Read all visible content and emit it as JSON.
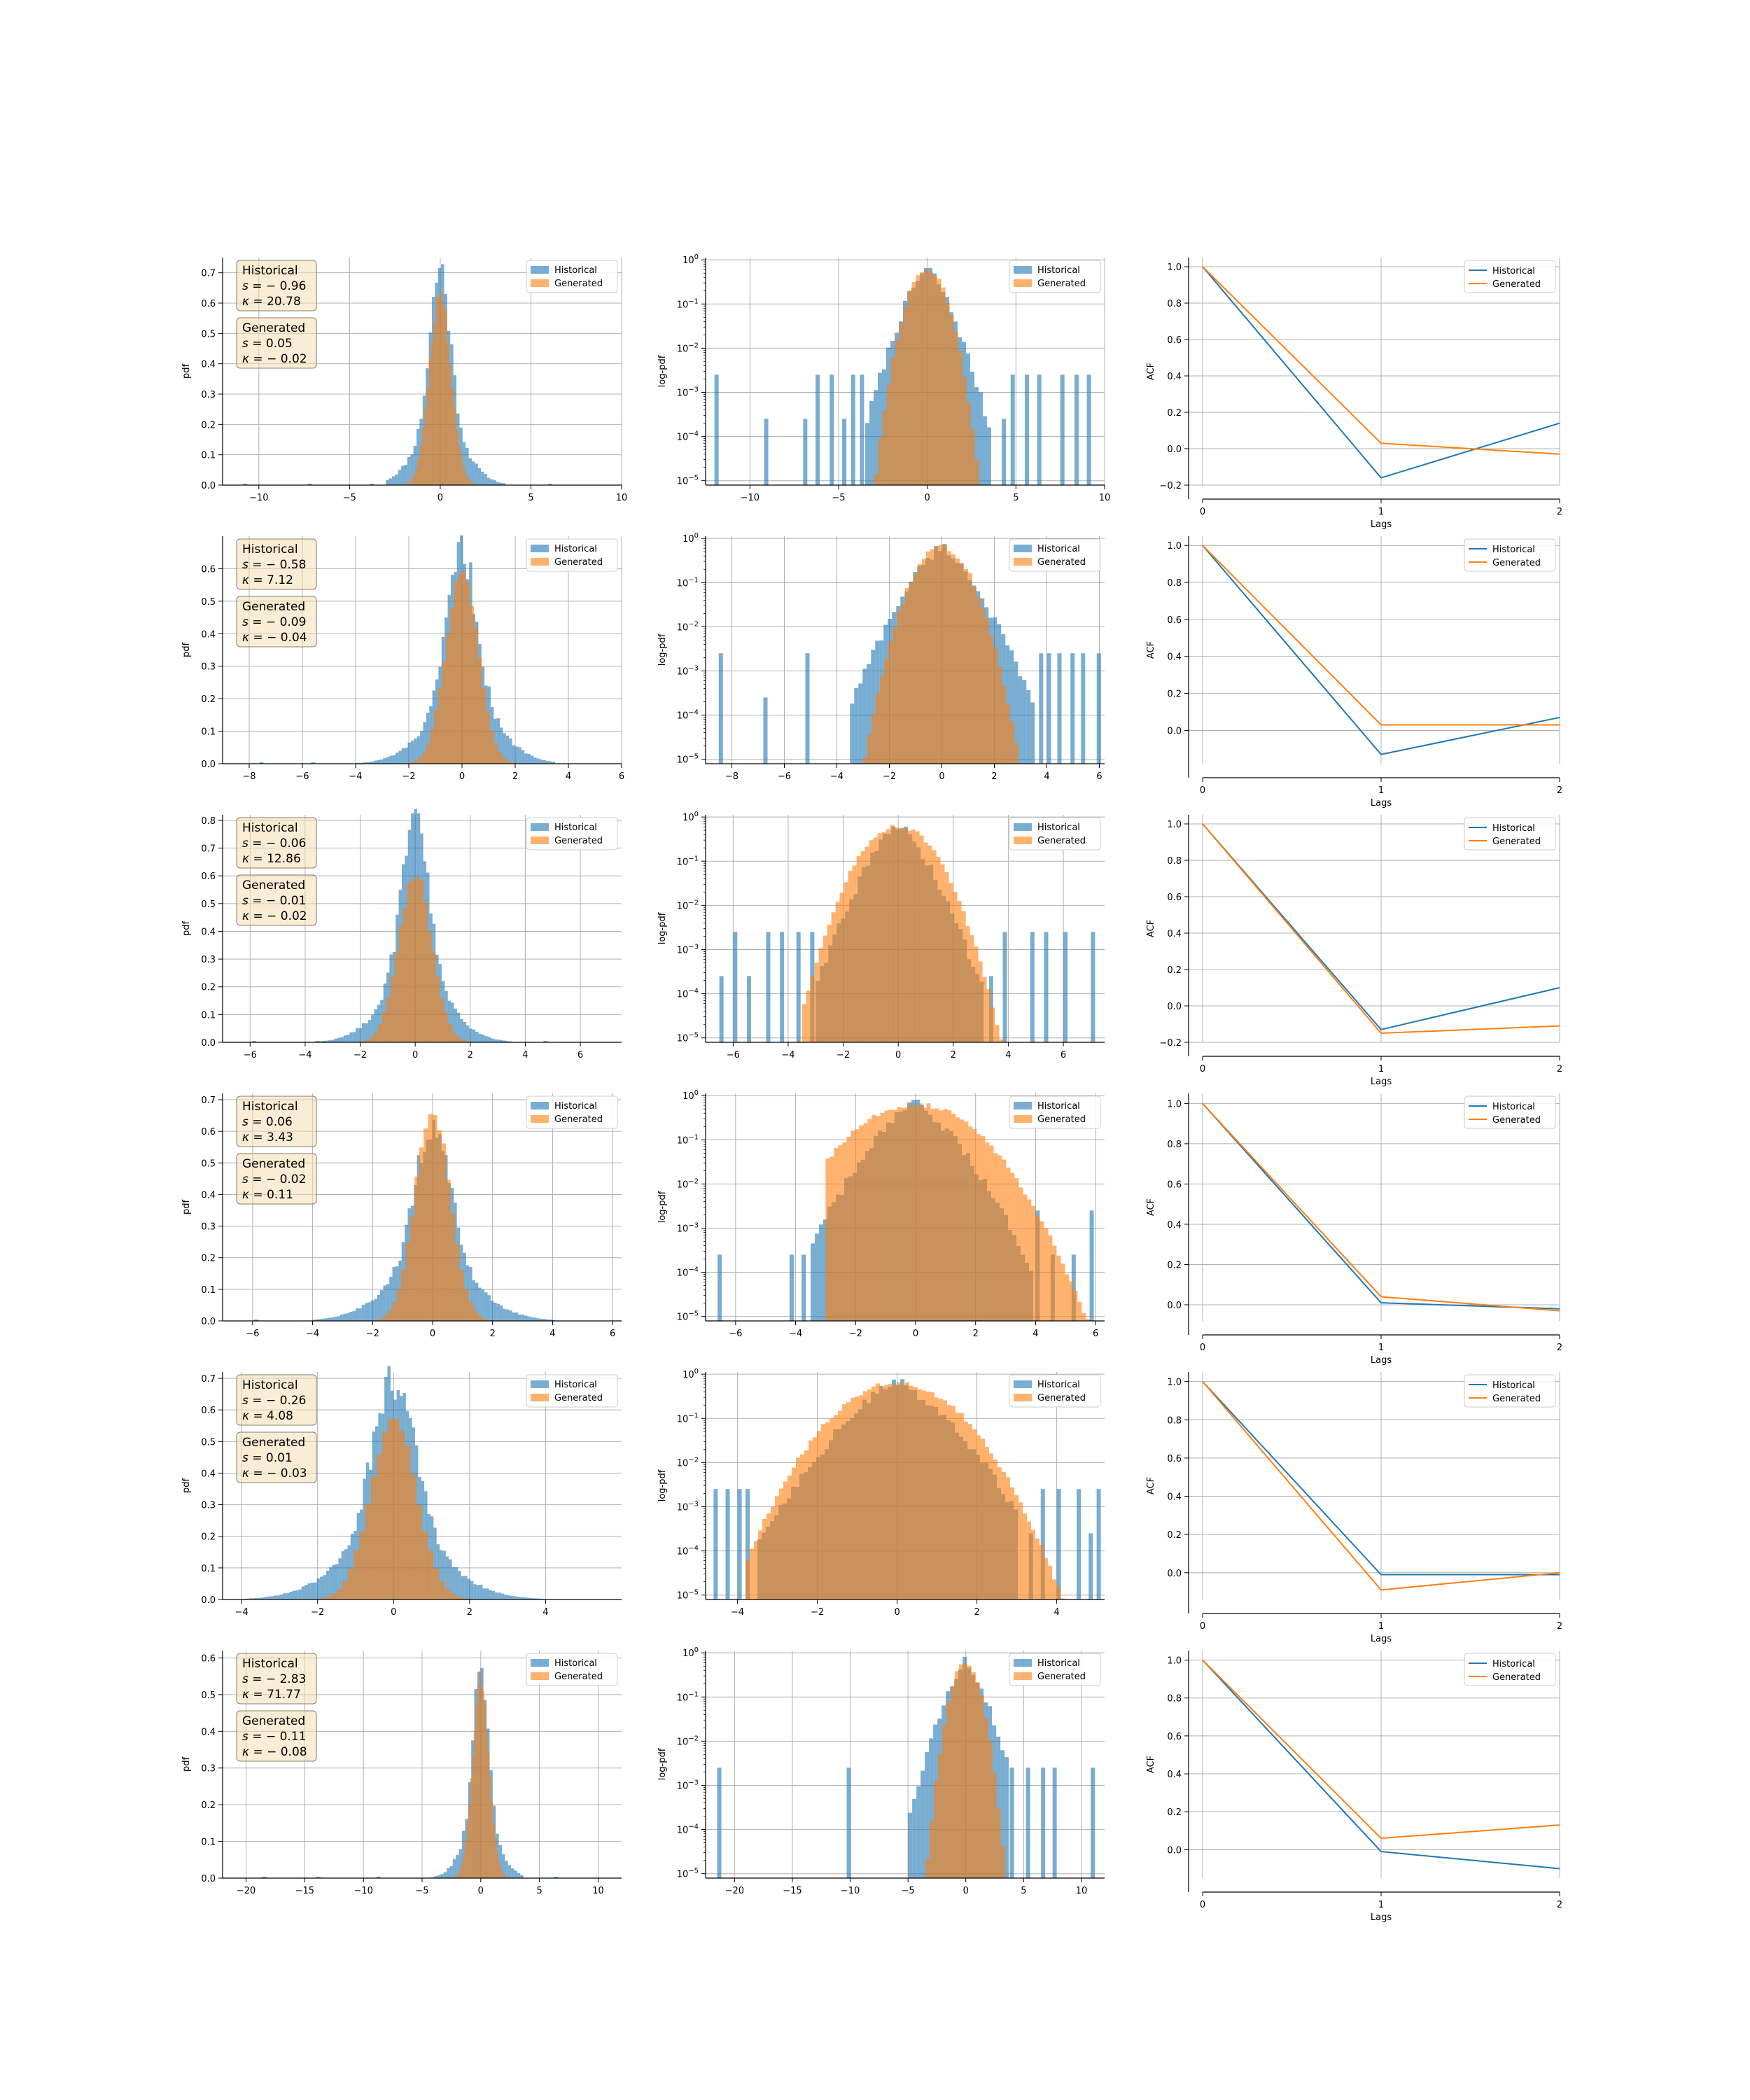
{
  "chart_data": {
    "type": "histogram-grid",
    "legend": [
      "Historical",
      "Generated"
    ],
    "colors": {
      "Historical": "#1f77b4",
      "Generated": "#ff7f0e",
      "stats_box": "#f5deb3",
      "grid": "#b0b0b0"
    },
    "column_ylabels": [
      "pdf",
      "log-pdf",
      "ACF"
    ],
    "acf_xlabel": "Lags",
    "rows": [
      {
        "stats": {
          "historical": {
            "s": "0.96",
            "s_neg": true,
            "k": "20.78",
            "k_neg": false
          },
          "generated": {
            "s": "0.05",
            "s_neg": false,
            "k": "0.02",
            "k_neg": true
          }
        },
        "hist": {
          "xlim": [
            -12,
            10
          ],
          "xticks": [
            -10,
            -5,
            0,
            5,
            10
          ],
          "ylim": [
            0,
            0.75
          ],
          "yticks": [
            0,
            0.1,
            0.2,
            0.3,
            0.4,
            0.5,
            0.6,
            0.7
          ],
          "hist_sigma": 0.55,
          "hist_peak": 0.72,
          "hist_range": [
            -3,
            3.5
          ],
          "gen_sigma": 0.6,
          "gen_peak": 0.65,
          "gen_range": [
            -2.5,
            2.5
          ]
        },
        "log": {
          "xlim": [
            -12.5,
            10
          ],
          "xticks": [
            -10,
            -5,
            0,
            5,
            10
          ],
          "ymin_exp": -5,
          "ymax_exp": 0,
          "hist_core": [
            -3.5,
            3.5
          ],
          "hist_outliers": [
            -12,
            -9.2,
            -7,
            -6.3,
            -5.5,
            -4.8,
            -4.3,
            -3.8,
            4.2,
            4.7,
            5.5,
            6.2,
            7.5,
            8.3,
            9
          ],
          "gen_range": [
            -3,
            3
          ]
        },
        "acf": {
          "ylim": [
            -0.2,
            1.05
          ],
          "yticks": [
            -0.2,
            0,
            0.2,
            0.4,
            0.6,
            0.8,
            1.0
          ],
          "historical": [
            1.0,
            -0.16,
            0.14
          ],
          "generated": [
            1.0,
            0.03,
            -0.03
          ]
        }
      },
      {
        "stats": {
          "historical": {
            "s": "0.58",
            "s_neg": true,
            "k": "7.12",
            "k_neg": false
          },
          "generated": {
            "s": "0.09",
            "s_neg": true,
            "k": "0.04",
            "k_neg": true
          }
        },
        "hist": {
          "xlim": [
            -9,
            6
          ],
          "xticks": [
            -8,
            -6,
            -4,
            -2,
            0,
            2,
            4,
            6
          ],
          "ylim": [
            0,
            0.7
          ],
          "yticks": [
            0,
            0.1,
            0.2,
            0.3,
            0.4,
            0.5,
            0.6
          ],
          "hist_sigma": 0.55,
          "hist_peak": 0.65,
          "hist_range": [
            -4,
            3.5
          ],
          "gen_sigma": 0.6,
          "gen_peak": 0.62,
          "gen_range": [
            -3,
            3
          ]
        },
        "log": {
          "xlim": [
            -9,
            6.2
          ],
          "xticks": [
            -8,
            -6,
            -4,
            -2,
            0,
            2,
            4,
            6
          ],
          "ymin_exp": -5,
          "ymax_exp": 0,
          "hist_core": [
            -3.5,
            3.5
          ],
          "hist_outliers": [
            -8.5,
            -6.8,
            -5.2,
            3.7,
            4,
            4.4,
            4.9,
            5.3,
            5.9
          ],
          "gen_range": [
            -3,
            2.8
          ]
        },
        "acf": {
          "ylim": [
            -0.18,
            1.05
          ],
          "yticks": [
            0,
            0.2,
            0.4,
            0.6,
            0.8,
            1.0
          ],
          "historical": [
            1.0,
            -0.13,
            0.07
          ],
          "generated": [
            1.0,
            0.03,
            0.03
          ]
        }
      },
      {
        "stats": {
          "historical": {
            "s": "0.06",
            "s_neg": true,
            "k": "12.86",
            "k_neg": false
          },
          "generated": {
            "s": "0.01",
            "s_neg": true,
            "k": "0.02",
            "k_neg": true
          }
        },
        "hist": {
          "xlim": [
            -7,
            7.5
          ],
          "xticks": [
            -6,
            -4,
            -2,
            0,
            2,
            4,
            6
          ],
          "ylim": [
            0,
            0.82
          ],
          "yticks": [
            0,
            0.1,
            0.2,
            0.3,
            0.4,
            0.5,
            0.6,
            0.7,
            0.8
          ],
          "hist_sigma": 0.5,
          "hist_peak": 0.79,
          "hist_range": [
            -3.5,
            3.5
          ],
          "gen_sigma": 0.6,
          "gen_peak": 0.62,
          "gen_range": [
            -3,
            3
          ]
        },
        "log": {
          "xlim": [
            -7,
            7.5
          ],
          "xticks": [
            -6,
            -4,
            -2,
            0,
            2,
            4,
            6
          ],
          "ymin_exp": -5,
          "ymax_exp": 0,
          "hist_core": [
            -3,
            3
          ],
          "hist_outliers": [
            -6.5,
            -6,
            -5.5,
            -4.8,
            -4.3,
            -3.7,
            -3.2,
            3.3,
            3.8,
            4.8,
            5.3,
            6,
            7
          ],
          "gen_range": [
            -3.5,
            3.8
          ]
        },
        "acf": {
          "ylim": [
            -0.2,
            1.05
          ],
          "yticks": [
            -0.2,
            0,
            0.2,
            0.4,
            0.6,
            0.8,
            1.0
          ],
          "historical": [
            1.0,
            -0.13,
            0.1
          ],
          "generated": [
            1.0,
            -0.15,
            -0.11
          ]
        }
      },
      {
        "stats": {
          "historical": {
            "s": "0.06",
            "s_neg": false,
            "k": "3.43",
            "k_neg": false
          },
          "generated": {
            "s": "0.02",
            "s_neg": true,
            "k": "0.11",
            "k_neg": false
          }
        },
        "hist": {
          "xlim": [
            -7,
            6.3
          ],
          "xticks": [
            -6,
            -4,
            -2,
            0,
            2,
            4,
            6
          ],
          "ylim": [
            0,
            0.72
          ],
          "yticks": [
            0,
            0.1,
            0.2,
            0.3,
            0.4,
            0.5,
            0.6,
            0.7
          ],
          "hist_sigma": 0.6,
          "hist_peak": 0.6,
          "hist_range": [
            -4,
            4
          ],
          "gen_sigma": 0.58,
          "gen_peak": 0.68,
          "gen_range": [
            -3,
            3
          ]
        },
        "log": {
          "xlim": [
            -7,
            6.3
          ],
          "xticks": [
            -6,
            -4,
            -2,
            0,
            2,
            4,
            6
          ],
          "ymin_exp": -5,
          "ymax_exp": 0,
          "hist_core": [
            -3.5,
            3.8
          ],
          "hist_outliers": [
            -6.6,
            -4.2,
            -3.8,
            4,
            4.5,
            5.2,
            5.8
          ],
          "gen_range": [
            -3,
            5.8
          ]
        },
        "acf": {
          "ylim": [
            -0.08,
            1.05
          ],
          "yticks": [
            0,
            0.2,
            0.4,
            0.6,
            0.8,
            1.0
          ],
          "historical": [
            1.0,
            0.01,
            -0.02
          ],
          "generated": [
            1.0,
            0.04,
            -0.03
          ]
        }
      },
      {
        "stats": {
          "historical": {
            "s": "0.26",
            "s_neg": true,
            "k": "4.08",
            "k_neg": false
          },
          "generated": {
            "s": "0.01",
            "s_neg": false,
            "k": "0.03",
            "k_neg": true
          }
        },
        "hist": {
          "xlim": [
            -4.5,
            6
          ],
          "xticks": [
            -4,
            -2,
            0,
            2,
            4
          ],
          "ylim": [
            0,
            0.72
          ],
          "yticks": [
            0,
            0.1,
            0.2,
            0.3,
            0.4,
            0.5,
            0.6,
            0.7
          ],
          "hist_sigma": 0.55,
          "hist_peak": 0.7,
          "hist_range": [
            -4.2,
            4.5
          ],
          "gen_sigma": 0.6,
          "gen_peak": 0.58,
          "gen_range": [
            -3,
            3
          ]
        },
        "log": {
          "xlim": [
            -4.8,
            5.2
          ],
          "xticks": [
            -4,
            -2,
            0,
            2,
            4
          ],
          "ymin_exp": -5,
          "ymax_exp": 0,
          "hist_core": [
            -3.5,
            3
          ],
          "hist_outliers": [
            -4.6,
            -4.3,
            -4,
            -3.8,
            3.3,
            3.6,
            4,
            4.5,
            4.8,
            5
          ],
          "gen_range": [
            -3.8,
            4.2
          ]
        },
        "acf": {
          "ylim": [
            -0.14,
            1.05
          ],
          "yticks": [
            0,
            0.2,
            0.4,
            0.6,
            0.8,
            1.0
          ],
          "historical": [
            1.0,
            -0.01,
            -0.01
          ],
          "generated": [
            1.0,
            -0.09,
            0.0
          ]
        }
      },
      {
        "stats": {
          "historical": {
            "s": "2.83",
            "s_neg": true,
            "k": "71.77",
            "k_neg": false
          },
          "generated": {
            "s": "0.11",
            "s_neg": true,
            "k": "0.08",
            "k_neg": true
          }
        },
        "hist": {
          "xlim": [
            -22,
            12
          ],
          "xticks": [
            -20,
            -15,
            -10,
            -5,
            0,
            5,
            10
          ],
          "ylim": [
            0,
            0.62
          ],
          "yticks": [
            0,
            0.1,
            0.2,
            0.3,
            0.4,
            0.5,
            0.6
          ],
          "hist_sigma": 0.6,
          "hist_peak": 0.58,
          "hist_range": [
            -5,
            3.5
          ],
          "gen_sigma": 0.7,
          "gen_peak": 0.56,
          "gen_range": [
            -3,
            3
          ]
        },
        "log": {
          "xlim": [
            -22.5,
            12
          ],
          "xticks": [
            -20,
            -15,
            -10,
            -5,
            0,
            5,
            10
          ],
          "ymin_exp": -5,
          "ymax_exp": 0,
          "hist_core": [
            -5,
            3.5
          ],
          "hist_outliers": [
            -21.5,
            -10.3,
            3.8,
            5.2,
            6.5,
            7.5,
            10.8
          ],
          "gen_range": [
            -3.5,
            3.5
          ]
        },
        "acf": {
          "ylim": [
            -0.15,
            1.05
          ],
          "yticks": [
            0,
            0.2,
            0.4,
            0.6,
            0.8,
            1.0
          ],
          "historical": [
            1.0,
            -0.01,
            -0.1
          ],
          "generated": [
            1.0,
            0.06,
            0.13
          ]
        }
      }
    ]
  }
}
